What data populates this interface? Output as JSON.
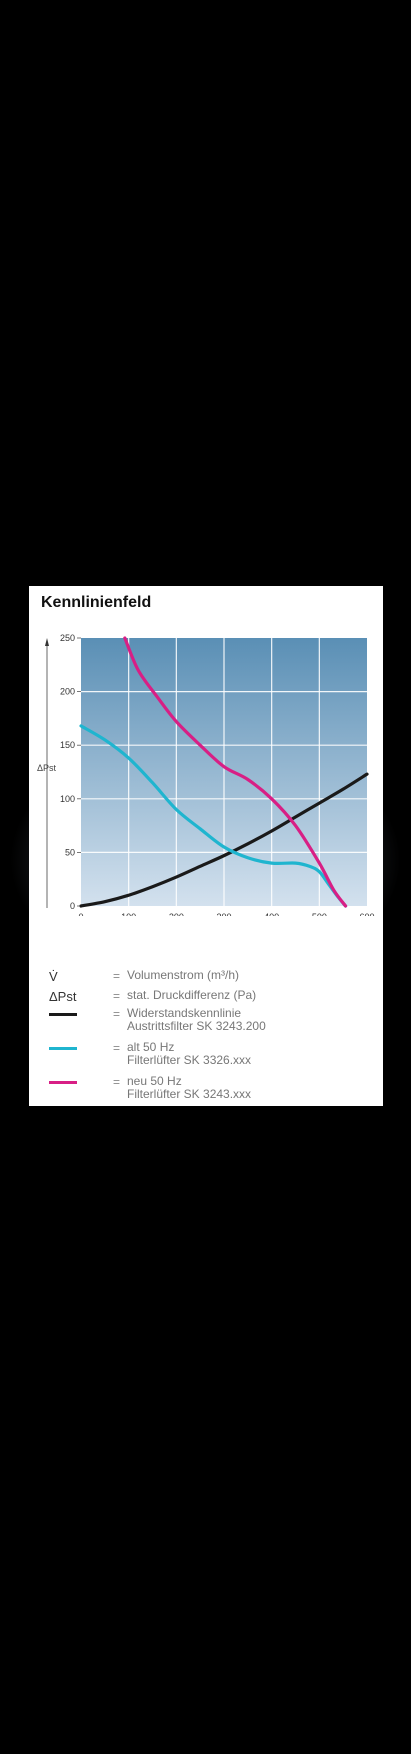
{
  "title": "Kennlinienfeld",
  "chart_data": {
    "type": "line",
    "xlabel": "V̇",
    "ylabel": "ΔPst",
    "xlim": [
      0,
      600
    ],
    "ylim": [
      0,
      250
    ],
    "xticks": [
      0,
      100,
      200,
      300,
      400,
      500,
      600
    ],
    "yticks": [
      0,
      50,
      100,
      150,
      200,
      250
    ],
    "grid": true,
    "series": [
      {
        "name": "Widerstandskennlinie Austrittsfilter SK 3243.200",
        "color": "#1a1a1a",
        "x": [
          0,
          50,
          100,
          150,
          200,
          250,
          300,
          350,
          400,
          450,
          500,
          550,
          600
        ],
        "y": [
          0,
          4,
          10,
          18,
          27,
          37,
          47,
          58,
          70,
          83,
          96,
          109,
          123
        ]
      },
      {
        "name": "alt 50 Hz Filterlüfter SK 3326.xxx",
        "color": "#1fb5cf",
        "x": [
          0,
          50,
          100,
          150,
          200,
          250,
          300,
          350,
          400,
          450,
          480,
          500,
          520,
          540,
          555
        ],
        "y": [
          168,
          155,
          138,
          115,
          90,
          72,
          55,
          45,
          40,
          40,
          37,
          32,
          20,
          8,
          0
        ]
      },
      {
        "name": "neu 50 Hz Filterlüfter SK 3243.xxx",
        "color": "#d81f85",
        "x": [
          92,
          120,
          160,
          200,
          250,
          300,
          350,
          400,
          450,
          500,
          530,
          555
        ],
        "y": [
          250,
          220,
          195,
          172,
          150,
          130,
          118,
          100,
          75,
          40,
          15,
          0
        ]
      }
    ]
  },
  "legend": {
    "rows": [
      {
        "symbol": "V̇",
        "eq": "=",
        "text": "Volumenstrom (m³/h)"
      },
      {
        "symbol": "ΔPst",
        "eq": "=",
        "text": "stat. Druckdifferenz (Pa)"
      },
      {
        "eq": "=",
        "line1": "Widerstandskennlinie",
        "line2": "Austrittsfilter SK 3243.200",
        "color": "#1a1a1a"
      },
      {
        "eq": "=",
        "line1": "alt 50 Hz",
        "line2": "Filterlüfter SK 3326.xxx",
        "color": "#1fb5cf"
      },
      {
        "eq": "=",
        "line1": "neu 50 Hz",
        "line2": "Filterlüfter SK 3243.xxx",
        "color": "#d81f85"
      }
    ]
  }
}
